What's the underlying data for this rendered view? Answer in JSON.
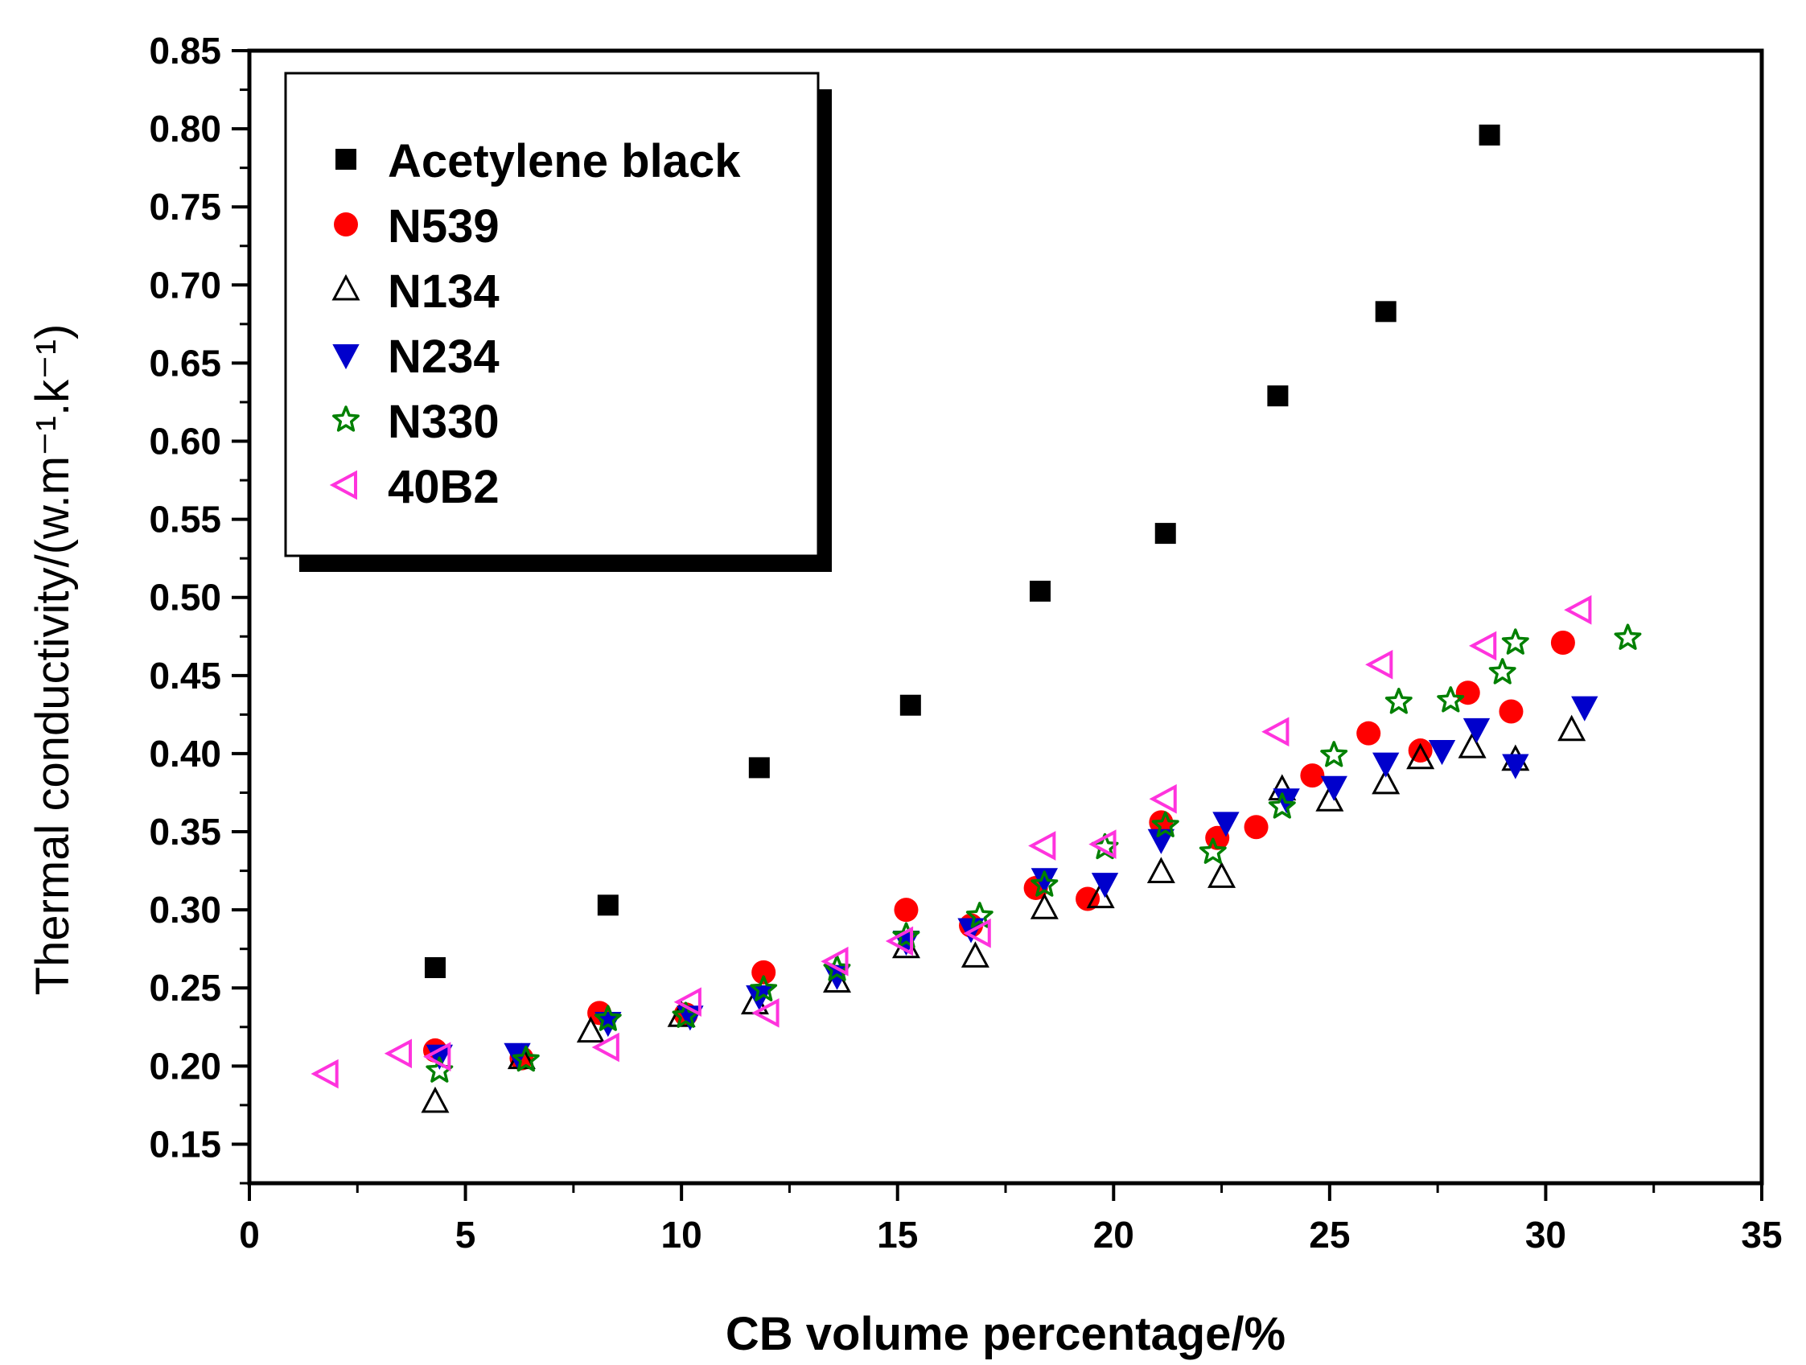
{
  "chart_data": {
    "type": "scatter",
    "title": "",
    "xlabel": "CB volume percentage/%",
    "ylabel": "Thermal conductivity/(w.m⁻¹.k⁻¹)",
    "xlim": [
      0,
      35
    ],
    "ylim": [
      0.125,
      0.85
    ],
    "xticks": [
      "0",
      "5",
      "10",
      "15",
      "20",
      "25",
      "30",
      "35"
    ],
    "yticks": [
      "0.15",
      "0.20",
      "0.25",
      "0.30",
      "0.35",
      "0.40",
      "0.45",
      "0.50",
      "0.55",
      "0.60",
      "0.65",
      "0.70",
      "0.75",
      "0.80",
      "0.85"
    ],
    "legend_position": "top-left",
    "series": [
      {
        "name": "Acetylene black",
        "marker": "square",
        "color": "#000000",
        "x": [
          4.3,
          8.3,
          11.8,
          15.3,
          18.3,
          21.2,
          23.8,
          26.3,
          28.7
        ],
        "y": [
          0.263,
          0.303,
          0.391,
          0.431,
          0.504,
          0.541,
          0.629,
          0.683,
          0.796
        ]
      },
      {
        "name": "N539",
        "marker": "circle",
        "color": "#ff0000",
        "x": [
          4.3,
          6.3,
          8.1,
          10.1,
          11.9,
          15.2,
          16.7,
          18.2,
          19.4,
          21.1,
          22.4,
          23.3,
          24.6,
          25.9,
          27.1,
          28.2,
          29.2,
          30.4
        ],
        "y": [
          0.21,
          0.205,
          0.234,
          0.233,
          0.26,
          0.3,
          0.29,
          0.314,
          0.307,
          0.356,
          0.346,
          0.353,
          0.386,
          0.413,
          0.402,
          0.439,
          0.427,
          0.471
        ]
      },
      {
        "name": "N134",
        "marker": "triangle-up",
        "color": "#000000",
        "x": [
          4.3,
          6.3,
          7.9,
          10.0,
          11.7,
          13.6,
          15.2,
          16.8,
          18.4,
          19.7,
          21.1,
          22.5,
          23.9,
          25.0,
          26.3,
          27.1,
          28.3,
          29.3,
          30.6
        ],
        "y": [
          0.177,
          0.205,
          0.222,
          0.232,
          0.24,
          0.254,
          0.276,
          0.27,
          0.301,
          0.308,
          0.324,
          0.321,
          0.377,
          0.37,
          0.381,
          0.397,
          0.404,
          0.396,
          0.415
        ]
      },
      {
        "name": "N234",
        "marker": "triangle-down",
        "color": "#0000cc",
        "x": [
          4.4,
          6.2,
          8.3,
          10.2,
          11.8,
          13.6,
          15.2,
          16.7,
          18.4,
          19.8,
          21.1,
          22.6,
          24.0,
          25.1,
          26.3,
          27.6,
          28.4,
          29.3,
          30.9
        ],
        "y": [
          0.207,
          0.208,
          0.228,
          0.232,
          0.245,
          0.258,
          0.28,
          0.288,
          0.32,
          0.317,
          0.345,
          0.356,
          0.371,
          0.379,
          0.394,
          0.402,
          0.416,
          0.393,
          0.43
        ]
      },
      {
        "name": "N330",
        "marker": "star",
        "color": "#008000",
        "x": [
          4.4,
          6.4,
          8.3,
          10.1,
          11.9,
          13.6,
          15.2,
          16.9,
          18.4,
          19.8,
          21.2,
          22.3,
          23.9,
          25.1,
          26.6,
          27.8,
          29.0,
          29.3,
          31.9
        ],
        "y": [
          0.197,
          0.204,
          0.23,
          0.232,
          0.249,
          0.262,
          0.283,
          0.296,
          0.316,
          0.34,
          0.354,
          0.337,
          0.366,
          0.399,
          0.433,
          0.434,
          0.452,
          0.471,
          0.474
        ]
      },
      {
        "name": "40B2",
        "marker": "triangle-left",
        "color": "#ff33dd",
        "x": [
          1.8,
          3.5,
          4.4,
          8.3,
          10.2,
          12.0,
          13.6,
          15.1,
          16.9,
          18.4,
          19.8,
          21.2,
          23.8,
          26.2,
          28.6,
          30.8
        ],
        "y": [
          0.195,
          0.208,
          0.206,
          0.212,
          0.241,
          0.234,
          0.267,
          0.28,
          0.285,
          0.341,
          0.342,
          0.371,
          0.414,
          0.457,
          0.469,
          0.492
        ]
      }
    ]
  }
}
